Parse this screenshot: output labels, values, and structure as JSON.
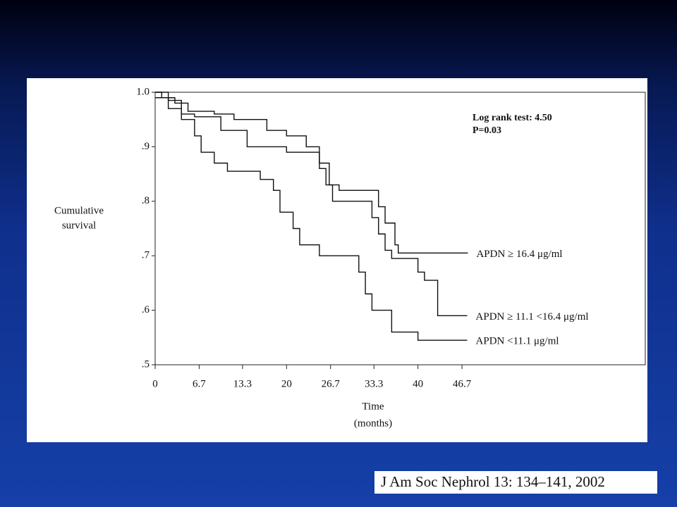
{
  "chart_data": {
    "type": "step",
    "annotations": [
      "Log rank test: 4.50",
      "P=0.03"
    ],
    "ylabel": [
      "Cumulative",
      "survival"
    ],
    "xlabel": [
      "Time",
      "(months)"
    ],
    "xlim": [
      0,
      74.6
    ],
    "ylim": [
      0.5,
      1.0
    ],
    "xticks": [
      0,
      6.7,
      13.3,
      20.0,
      26.7,
      33.3,
      40.0,
      46.7
    ],
    "yticks": [
      {
        "value": 0.5,
        "label": ".5"
      },
      {
        "value": 0.6,
        "label": ".6"
      },
      {
        "value": 0.7,
        "label": ".7"
      },
      {
        "value": 0.8,
        "label": ".8"
      },
      {
        "value": 0.9,
        "label": ".9"
      },
      {
        "value": 1.0,
        "label": "1.0"
      }
    ],
    "series": [
      {
        "name": "APDN ≥ 16.4 μg/ml",
        "color": "#111111",
        "x": [
          0,
          1,
          3,
          5,
          9,
          12,
          17,
          20,
          23,
          25,
          26.5,
          28,
          33,
          34,
          35,
          36.5,
          37,
          47.6
        ],
        "values": [
          1.0,
          0.99,
          0.98,
          0.965,
          0.96,
          0.95,
          0.93,
          0.92,
          0.9,
          0.87,
          0.83,
          0.82,
          0.82,
          0.79,
          0.76,
          0.72,
          0.705,
          0.705
        ]
      },
      {
        "name": "APDN ≥ 11.1 <16.4 μg/ml",
        "color": "#111111",
        "x": [
          0,
          2,
          4,
          6,
          10,
          14,
          20,
          25,
          26,
          27,
          32,
          33,
          34,
          35,
          36,
          39,
          40,
          41,
          43,
          47.5
        ],
        "values": [
          1.0,
          0.985,
          0.96,
          0.955,
          0.93,
          0.9,
          0.89,
          0.86,
          0.83,
          0.8,
          0.8,
          0.77,
          0.74,
          0.71,
          0.695,
          0.695,
          0.67,
          0.655,
          0.59,
          0.59
        ]
      },
      {
        "name": "APDN <11.1 μg/ml",
        "color": "#111111",
        "x": [
          0,
          2,
          4,
          6,
          7,
          9,
          11,
          16,
          18,
          19,
          21,
          22,
          25,
          31,
          32,
          33,
          36,
          40,
          47.5
        ],
        "values": [
          0.99,
          0.97,
          0.95,
          0.92,
          0.89,
          0.87,
          0.855,
          0.84,
          0.82,
          0.78,
          0.75,
          0.72,
          0.7,
          0.67,
          0.63,
          0.6,
          0.56,
          0.545,
          0.545
        ]
      }
    ]
  },
  "citation": "J Am Soc Nephrol 13: 134–141, 2002"
}
